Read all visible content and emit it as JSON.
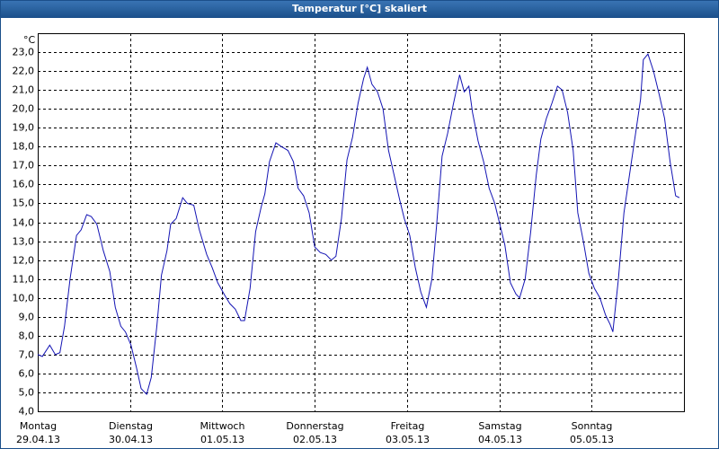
{
  "window": {
    "title": "Temperatur [°C] skaliert"
  },
  "chart_data": {
    "type": "line",
    "y_unit": "°C",
    "x": [
      0,
      0.05,
      0.13,
      0.19,
      0.24,
      0.29,
      0.35,
      0.42,
      0.47,
      0.53,
      0.58,
      0.64,
      0.71,
      0.78,
      0.84,
      0.9,
      0.95,
      1.01,
      1.07,
      1.12,
      1.18,
      1.23,
      1.29,
      1.34,
      1.4,
      1.44,
      1.5,
      1.57,
      1.62,
      1.69,
      1.75,
      1.83,
      1.89,
      1.95,
      2.03,
      2.08,
      2.14,
      2.2,
      2.24,
      2.3,
      2.36,
      2.42,
      2.46,
      2.51,
      2.58,
      2.64,
      2.71,
      2.77,
      2.82,
      2.88,
      2.94,
      3.0,
      3.06,
      3.12,
      3.18,
      3.23,
      3.29,
      3.35,
      3.41,
      3.47,
      3.53,
      3.57,
      3.62,
      3.68,
      3.74,
      3.8,
      3.86,
      3.92,
      3.97,
      4.03,
      4.09,
      4.15,
      4.21,
      4.27,
      4.32,
      4.38,
      4.44,
      4.5,
      4.57,
      4.62,
      4.67,
      4.71,
      4.77,
      4.83,
      4.89,
      4.95,
      5.01,
      5.06,
      5.12,
      5.18,
      5.22,
      5.28,
      5.34,
      5.4,
      5.45,
      5.51,
      5.57,
      5.63,
      5.68,
      5.74,
      5.8,
      5.85,
      5.91,
      5.97,
      6.03,
      6.09,
      6.15,
      6.2,
      6.23,
      6.29,
      6.35,
      6.41,
      6.47,
      6.53,
      6.56,
      6.61,
      6.67,
      6.73,
      6.79,
      6.85,
      6.91,
      6.95
    ],
    "series": [
      {
        "name": "Temperatur",
        "color": "#1414b4",
        "values": [
          7.0,
          6.9,
          7.5,
          7.0,
          7.1,
          8.5,
          11.0,
          13.3,
          13.6,
          14.4,
          14.3,
          13.9,
          12.5,
          11.4,
          9.5,
          8.5,
          8.2,
          7.5,
          6.3,
          5.2,
          4.9,
          5.8,
          8.5,
          11.2,
          12.5,
          13.9,
          14.2,
          15.3,
          15.0,
          14.9,
          13.6,
          12.3,
          11.6,
          10.8,
          10.1,
          9.7,
          9.4,
          8.8,
          8.8,
          10.5,
          13.5,
          14.8,
          15.5,
          17.2,
          18.2,
          18.0,
          17.8,
          17.2,
          15.8,
          15.4,
          14.5,
          12.7,
          12.4,
          12.3,
          12.0,
          12.2,
          14.2,
          17.3,
          18.5,
          20.3,
          21.6,
          22.2,
          21.3,
          20.9,
          20.0,
          17.8,
          16.5,
          15.2,
          14.2,
          13.3,
          11.6,
          10.3,
          9.5,
          11.0,
          13.8,
          17.5,
          18.7,
          20.2,
          21.8,
          20.9,
          21.2,
          19.8,
          18.3,
          17.2,
          15.8,
          15.0,
          13.8,
          12.8,
          10.8,
          10.2,
          10.0,
          11.0,
          13.5,
          16.5,
          18.4,
          19.5,
          20.3,
          21.2,
          21.0,
          19.8,
          17.8,
          14.5,
          13.0,
          11.3,
          10.5,
          10.0,
          9.1,
          8.6,
          8.2,
          11.0,
          14.5,
          16.5,
          18.5,
          20.5,
          22.6,
          22.9,
          22.0,
          20.8,
          19.5,
          17.2,
          15.4,
          15.3
        ]
      }
    ],
    "xlim": [
      0,
      7
    ],
    "xticks": [
      {
        "value": 0,
        "label": "Montag",
        "date": "29.04.13"
      },
      {
        "value": 1,
        "label": "Dienstag",
        "date": "30.04.13"
      },
      {
        "value": 2,
        "label": "Mittwoch",
        "date": "01.05.13"
      },
      {
        "value": 3,
        "label": "Donnerstag",
        "date": "02.05.13"
      },
      {
        "value": 4,
        "label": "Freitag",
        "date": "03.05.13"
      },
      {
        "value": 5,
        "label": "Samstag",
        "date": "04.05.13"
      },
      {
        "value": 6,
        "label": "Sonntag",
        "date": "05.05.13"
      },
      7
    ],
    "ylim": [
      4,
      24
    ],
    "yticks": [
      {
        "value": 4,
        "label": "4,0"
      },
      {
        "value": 5,
        "label": "5,0"
      },
      {
        "value": 6,
        "label": "6,0"
      },
      {
        "value": 7,
        "label": "7,0"
      },
      {
        "value": 8,
        "label": "8,0"
      },
      {
        "value": 9,
        "label": "9,0"
      },
      {
        "value": 10,
        "label": "10,0"
      },
      {
        "value": 11,
        "label": "11,0"
      },
      {
        "value": 12,
        "label": "12,0"
      },
      {
        "value": 13,
        "label": "13,0"
      },
      {
        "value": 14,
        "label": "14,0"
      },
      {
        "value": 15,
        "label": "15,0"
      },
      {
        "value": 16,
        "label": "16,0"
      },
      {
        "value": 17,
        "label": "17,0"
      },
      {
        "value": 18,
        "label": "18,0"
      },
      {
        "value": 19,
        "label": "19,0"
      },
      {
        "value": 20,
        "label": "20,0"
      },
      {
        "value": 21,
        "label": "21,0"
      },
      {
        "value": 22,
        "label": "22,0"
      },
      {
        "value": 23,
        "label": "23,0"
      }
    ],
    "grid": true
  }
}
